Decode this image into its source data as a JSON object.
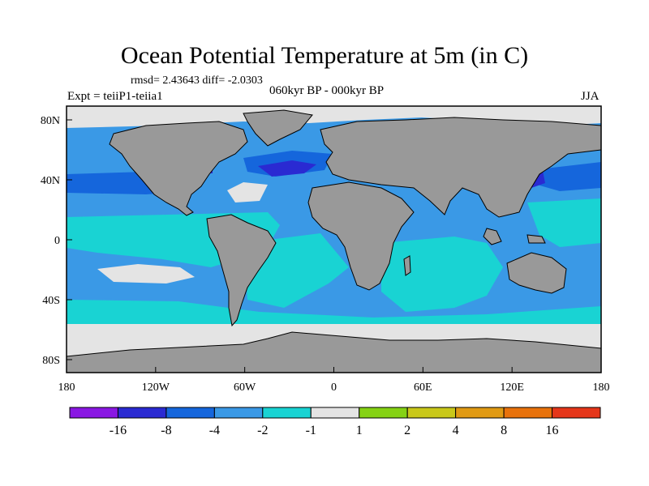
{
  "title": "Ocean Potential Temperature at 5m (in C)",
  "stats": "rmsd= 2.43643 diff= -2.0303",
  "left_label": "Expt = teiiP1-teiia1",
  "center_label": "060kyr BP - 000kyr BP",
  "right_label": "JJA",
  "lon_ticks": [
    "180",
    "120W",
    "60W",
    "0",
    "60E",
    "120E",
    "180"
  ],
  "lat_ticks": [
    "80N",
    "40N",
    "0",
    "40S",
    "80S"
  ],
  "colorbar": {
    "colors": [
      "#8a17e3",
      "#2a2ad2",
      "#1566dc",
      "#3a99e6",
      "#19d3d3",
      "#e4e4e4",
      "#85d214",
      "#c9c81a",
      "#e09a14",
      "#e8720c",
      "#e5361a"
    ],
    "labels": [
      "-16",
      "-8",
      "-4",
      "-2",
      "-1",
      "1",
      "2",
      "4",
      "8",
      "16"
    ]
  },
  "colors": {
    "land": "#999999",
    "ocean_main": "#3a99e6",
    "ocean_cyan": "#19d3d3",
    "ocean_dark": "#1566dc",
    "ocean_deep": "#2a2ad2",
    "ocean_light": "#e4e4e4"
  }
}
